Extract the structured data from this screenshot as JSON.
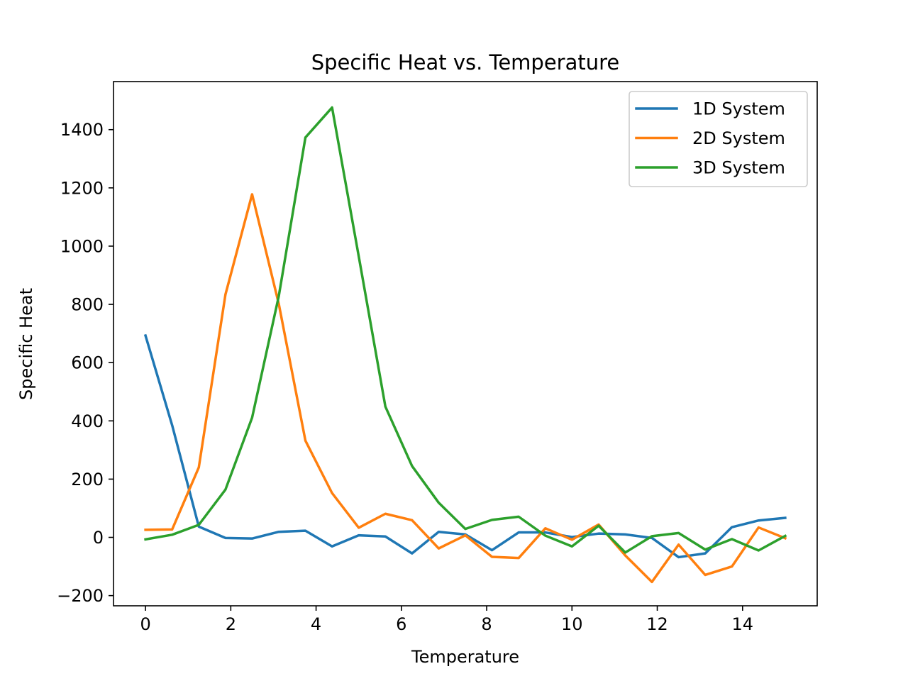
{
  "chart_data": {
    "type": "line",
    "title": "Specific Heat vs. Temperature",
    "xlabel": "Temperature",
    "ylabel": "Specific Heat",
    "xlim": [
      -0.75,
      15.75
    ],
    "ylim": [
      -235,
      1565
    ],
    "xticks": [
      0,
      2,
      4,
      6,
      8,
      10,
      12,
      14
    ],
    "yticks": [
      -200,
      0,
      200,
      400,
      600,
      800,
      1000,
      1200,
      1400
    ],
    "ytick_labels": [
      "−200",
      "0",
      "200",
      "400",
      "600",
      "800",
      "1000",
      "1200",
      "1400"
    ],
    "grid": false,
    "legend_position": "top-right",
    "x": [
      0,
      0.625,
      1.25,
      1.875,
      2.5,
      3.125,
      3.75,
      4.375,
      5.0,
      5.625,
      6.25,
      6.875,
      7.5,
      8.125,
      8.75,
      9.375,
      10.0,
      10.625,
      11.25,
      11.875,
      12.5,
      13.125,
      13.75,
      14.375,
      15.0
    ],
    "series": [
      {
        "name": "1D System",
        "color": "#1f77b4",
        "values": [
          693,
          385,
          37,
          -2,
          -4,
          19,
          23,
          -31,
          7,
          3,
          -55,
          19,
          10,
          -44,
          17,
          17,
          1,
          13,
          10,
          -2,
          -68,
          -55,
          35,
          58,
          67
        ]
      },
      {
        "name": "2D System",
        "color": "#ff7f0e",
        "values": [
          26,
          27,
          240,
          834,
          1178,
          802,
          332,
          152,
          33,
          81,
          59,
          -38,
          7,
          -67,
          -71,
          31,
          -8,
          44,
          -62,
          -153,
          -25,
          -129,
          -100,
          34,
          -3
        ]
      },
      {
        "name": "3D System",
        "color": "#2ca02c",
        "values": [
          -7,
          9,
          43,
          164,
          411,
          828,
          1373,
          1476,
          965,
          449,
          245,
          119,
          29,
          60,
          71,
          6,
          -31,
          40,
          -52,
          4,
          15,
          -42,
          -6,
          -45,
          5
        ]
      }
    ]
  }
}
